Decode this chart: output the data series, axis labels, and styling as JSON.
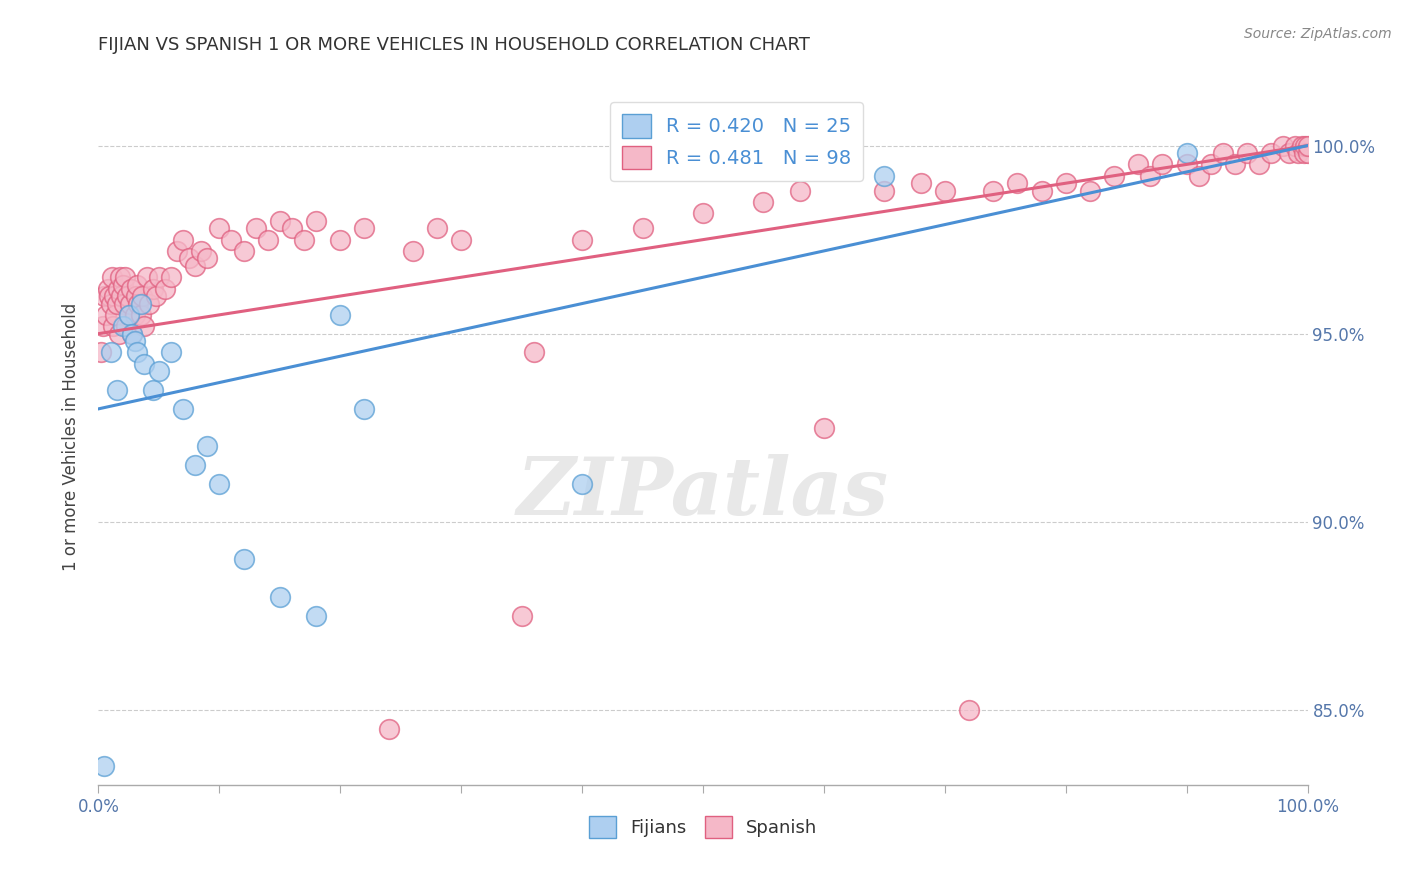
{
  "title": "FIJIAN VS SPANISH 1 OR MORE VEHICLES IN HOUSEHOLD CORRELATION CHART",
  "source": "Source: ZipAtlas.com",
  "ylabel": "1 or more Vehicles in Household",
  "xlim": [
    0.0,
    100.0
  ],
  "ylim": [
    83.0,
    101.5
  ],
  "fijian_color": "#aecff0",
  "spanish_color": "#f5b8c8",
  "fijian_edge_color": "#5a9fd4",
  "spanish_edge_color": "#e06080",
  "fijian_line_color": "#4a8fd4",
  "spanish_line_color": "#e06080",
  "fijian_R": 0.42,
  "fijian_N": 25,
  "spanish_R": 0.481,
  "spanish_N": 98,
  "background_color": "#ffffff",
  "grid_color": "#cccccc",
  "watermark": "ZIPatlas",
  "legend_R_color": "#4a8fd4",
  "ytick_positions": [
    85.0,
    90.0,
    95.0,
    100.0
  ],
  "ytick_labels": [
    "85.0%",
    "90.0%",
    "95.0%",
    "100.0%"
  ],
  "fijian_x": [
    0.5,
    1.0,
    1.5,
    2.0,
    2.5,
    2.8,
    3.0,
    3.2,
    3.5,
    3.8,
    4.5,
    5.0,
    6.0,
    7.0,
    8.0,
    9.0,
    10.0,
    12.0,
    15.0,
    18.0,
    20.0,
    22.0,
    40.0,
    65.0,
    90.0
  ],
  "fijian_y": [
    83.5,
    94.5,
    93.5,
    95.2,
    95.5,
    95.0,
    94.8,
    94.5,
    95.8,
    94.2,
    93.5,
    94.0,
    94.5,
    93.0,
    91.5,
    92.0,
    91.0,
    89.0,
    88.0,
    87.5,
    95.5,
    93.0,
    91.0,
    99.2,
    99.8
  ],
  "spanish_x": [
    0.2,
    0.4,
    0.5,
    0.6,
    0.8,
    0.9,
    1.0,
    1.1,
    1.2,
    1.3,
    1.4,
    1.5,
    1.6,
    1.7,
    1.8,
    1.9,
    2.0,
    2.1,
    2.2,
    2.3,
    2.4,
    2.5,
    2.6,
    2.7,
    2.8,
    3.0,
    3.1,
    3.2,
    3.3,
    3.5,
    3.6,
    3.8,
    4.0,
    4.2,
    4.5,
    4.8,
    5.0,
    5.5,
    6.0,
    6.5,
    7.0,
    7.5,
    8.0,
    8.5,
    9.0,
    10.0,
    11.0,
    12.0,
    13.0,
    14.0,
    15.0,
    16.0,
    17.0,
    18.0,
    20.0,
    22.0,
    24.0,
    26.0,
    28.0,
    30.0,
    35.0,
    36.0,
    40.0,
    45.0,
    50.0,
    55.0,
    58.0,
    60.0,
    65.0,
    68.0,
    70.0,
    72.0,
    74.0,
    76.0,
    78.0,
    80.0,
    82.0,
    84.0,
    86.0,
    87.0,
    88.0,
    90.0,
    91.0,
    92.0,
    93.0,
    94.0,
    95.0,
    96.0,
    97.0,
    98.0,
    98.5,
    99.0,
    99.2,
    99.5,
    99.7,
    99.8,
    100.0,
    100.0
  ],
  "spanish_y": [
    94.5,
    95.2,
    96.0,
    95.5,
    96.2,
    96.0,
    95.8,
    96.5,
    95.2,
    96.0,
    95.5,
    95.8,
    96.2,
    95.0,
    96.5,
    96.0,
    96.3,
    95.8,
    96.5,
    95.2,
    96.0,
    95.5,
    95.8,
    96.2,
    95.0,
    95.5,
    96.0,
    96.3,
    95.8,
    95.5,
    96.0,
    95.2,
    96.5,
    95.8,
    96.2,
    96.0,
    96.5,
    96.2,
    96.5,
    97.2,
    97.5,
    97.0,
    96.8,
    97.2,
    97.0,
    97.8,
    97.5,
    97.2,
    97.8,
    97.5,
    98.0,
    97.8,
    97.5,
    98.0,
    97.5,
    97.8,
    84.5,
    97.2,
    97.8,
    97.5,
    87.5,
    94.5,
    97.5,
    97.8,
    98.2,
    98.5,
    98.8,
    92.5,
    98.8,
    99.0,
    98.8,
    85.0,
    98.8,
    99.0,
    98.8,
    99.0,
    98.8,
    99.2,
    99.5,
    99.2,
    99.5,
    99.5,
    99.2,
    99.5,
    99.8,
    99.5,
    99.8,
    99.5,
    99.8,
    100.0,
    99.8,
    100.0,
    99.8,
    100.0,
    99.8,
    100.0,
    99.8,
    100.0
  ]
}
